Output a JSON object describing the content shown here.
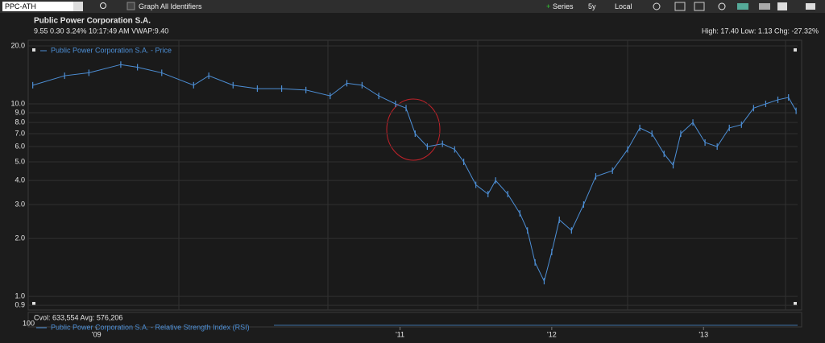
{
  "toolbar": {
    "symbol": "PPC-ATH",
    "graph_all": "Graph All Identifiers",
    "series": "Series",
    "period": "5y",
    "currency": "Local"
  },
  "chart_data": {
    "type": "line",
    "title": "Public Power Corporation S.A.",
    "subtitle": "9.55 0.30 3.24% 10:17:49 AM VWAP:9.40",
    "annotation": "High: 17.40 Low: 1.13 Chg: -27.32%",
    "x": [
      2008.58,
      2008.79,
      2008.95,
      2009.16,
      2009.27,
      2009.43,
      2009.64,
      2009.74,
      2009.9,
      2010.06,
      2010.22,
      2010.38,
      2010.54,
      2010.65,
      2010.75,
      2010.86,
      2010.97,
      2011.04,
      2011.1,
      2011.18,
      2011.28,
      2011.36,
      2011.42,
      2011.5,
      2011.58,
      2011.63,
      2011.71,
      2011.79,
      2011.84,
      2011.89,
      2011.95,
      2012.0,
      2012.05,
      2012.13,
      2012.21,
      2012.29,
      2012.4,
      2012.5,
      2012.58,
      2012.66,
      2012.74,
      2012.8,
      2012.85,
      2012.93,
      2013.01,
      2013.09,
      2013.17,
      2013.25,
      2013.33,
      2013.41,
      2013.49,
      2013.56,
      2013.61
    ],
    "series": [
      {
        "name": "Public Power Corporation S.A. - Price",
        "color": "#4d8fd6",
        "values": [
          12.5,
          14,
          14.5,
          16,
          15.5,
          14.5,
          12.5,
          14,
          12.5,
          12,
          12,
          11.8,
          11,
          12.8,
          12.5,
          11,
          10,
          9.5,
          7,
          6,
          6.2,
          5.8,
          5,
          3.8,
          3.4,
          4,
          3.4,
          2.7,
          2.2,
          1.5,
          1.2,
          1.7,
          2.5,
          2.2,
          3,
          4.2,
          4.5,
          5.8,
          7.5,
          7,
          5.5,
          4.8,
          7,
          8,
          6.3,
          6,
          7.5,
          7.8,
          9.5,
          10,
          10.5,
          10.8,
          9.2
        ]
      }
    ],
    "xlim": [
      2008.55,
      2013.62
    ],
    "xticks": [
      {
        "value": 2009,
        "label": "'09"
      },
      {
        "value": 2011,
        "label": "'11"
      },
      {
        "value": 2012,
        "label": "'12"
      },
      {
        "value": 2013,
        "label": "'13"
      }
    ],
    "ylim": [
      0.85,
      21.4
    ],
    "yticks": [
      {
        "value": 20,
        "label": "20.0"
      },
      {
        "value": 10,
        "label": "10.0"
      },
      {
        "value": 9,
        "label": "9.0"
      },
      {
        "value": 8,
        "label": "8.0"
      },
      {
        "value": 7,
        "label": "7.0"
      },
      {
        "value": 6,
        "label": "6.0"
      },
      {
        "value": 5,
        "label": "5.0"
      },
      {
        "value": 4,
        "label": "4.0"
      },
      {
        "value": 3,
        "label": "3.0"
      },
      {
        "value": 2,
        "label": "2.0"
      },
      {
        "value": 1,
        "label": "1.0"
      },
      {
        "value": 0.9,
        "label": "0.9"
      }
    ],
    "log_y": true,
    "grid": true
  },
  "lower_panel": {
    "stats": "Cvol: 633,554 Avg: 576,206",
    "axis_label": "100",
    "legend": "Public Power Corporation S.A. - Relative Strength Index (RSI)"
  }
}
